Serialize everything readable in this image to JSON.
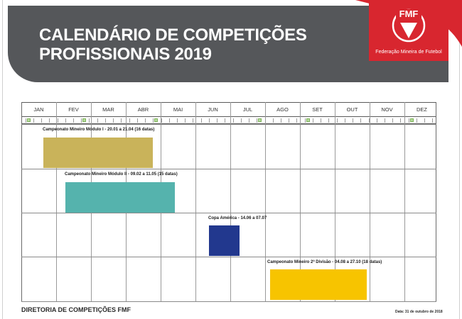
{
  "header": {
    "title_line1": "CALENDÁRIO DE COMPETIÇÕES",
    "title_line2": "PROFISSIONAIS 2019",
    "banner_color": "#55575a"
  },
  "logo": {
    "wordmark": "FMF",
    "name": "Federação Mineira de Futebol",
    "color": "#d8262f"
  },
  "calendar": {
    "months": [
      "JAN",
      "FEV",
      "MAR",
      "ABR",
      "MAI",
      "JUN",
      "JUL",
      "AGO",
      "SET",
      "OUT",
      "NOV",
      "DEZ"
    ],
    "events": [
      {
        "label": "Campeonato Mineiro Módulo I - 20.01 a 21.04 (16 datas)",
        "color": "#c9b35a"
      },
      {
        "label": "Campeonato Mineiro Módulo II - 09.02 a 11.05 (15 datas)",
        "color": "#55b3ad"
      },
      {
        "label": "Copa América - 14.06 a 07.07",
        "color": "#22388e"
      },
      {
        "label": "Campeonato Mineiro 2ª Divisão - 04.08 a 27.10 (18 datas)",
        "color": "#f7c400"
      }
    ]
  },
  "footer": {
    "department": "DIRETORIA DE COMPETIÇÕES FMF",
    "date_note": "Data: 31 de outubro de 2018"
  }
}
